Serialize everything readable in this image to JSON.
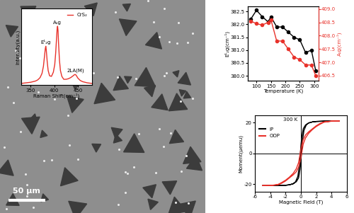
{
  "image": {
    "scale_bar": "50 μm"
  },
  "chart_data": [
    {
      "type": "line",
      "xlabel": "Raman Shift(cm⁻¹)",
      "ylabel": "Intensity(a.u.)",
      "x": [
        330,
        340,
        350,
        360,
        365,
        370,
        374,
        377,
        379,
        381,
        382,
        383,
        385,
        387,
        390,
        394,
        398,
        401,
        403,
        405,
        406,
        407,
        408,
        409,
        411,
        413,
        416,
        420,
        425,
        430,
        435,
        440,
        443,
        445,
        447,
        450,
        455,
        460,
        470,
        480
      ],
      "series": [
        {
          "name": "CrS₂",
          "color": "#e8322b",
          "values": [
            0.03,
            0.04,
            0.05,
            0.07,
            0.09,
            0.13,
            0.2,
            0.32,
            0.47,
            0.62,
            0.66,
            0.6,
            0.4,
            0.25,
            0.16,
            0.15,
            0.22,
            0.35,
            0.55,
            0.82,
            0.95,
            1.0,
            0.92,
            0.72,
            0.42,
            0.25,
            0.15,
            0.1,
            0.1,
            0.11,
            0.13,
            0.16,
            0.18,
            0.18,
            0.16,
            0.12,
            0.08,
            0.06,
            0.04,
            0.03
          ]
        }
      ],
      "annotations": [
        {
          "text": "E¹₂g",
          "x": 382
        },
        {
          "text": "A₁g",
          "x": 407
        },
        {
          "text": "2LA(M)",
          "x": 445
        }
      ],
      "xlim": [
        330,
        480
      ],
      "xticks": [
        350,
        400,
        450
      ],
      "ylim": [
        0,
        1.3
      ],
      "yticks": [],
      "tick_labels": "x",
      "legend": "upper right"
    },
    {
      "type": "line",
      "xlabel": "Temperature (K)",
      "ylabel": "E¹₂g(cm⁻¹)",
      "y2label": "A₁g(cm⁻¹)",
      "x": [
        80,
        100,
        120,
        140,
        150,
        170,
        190,
        210,
        230,
        250,
        270,
        290,
        305
      ],
      "series": [
        {
          "color": "#000000",
          "marker": "o",
          "values": [
            382.2,
            382.55,
            382.3,
            382.1,
            382.3,
            381.9,
            381.9,
            381.7,
            381.5,
            381.4,
            380.9,
            381.0,
            380.2
          ]
        },
        {
          "color": "#e8322b",
          "marker": "o",
          "axis": "y2",
          "values": [
            408.55,
            408.45,
            408.4,
            408.5,
            408.6,
            407.8,
            407.8,
            407.5,
            407.2,
            407.1,
            406.9,
            406.9,
            406.5
          ]
        }
      ],
      "xlim": [
        70,
        315
      ],
      "xticks": [
        100,
        150,
        200,
        250,
        300
      ],
      "ylim": [
        379.8,
        382.7
      ],
      "yticks": [
        {
          "value": 380,
          "label": "380.0"
        },
        380.5,
        {
          "value": 381,
          "label": "381.0"
        },
        381.5,
        {
          "value": 382,
          "label": "382.0"
        },
        382.5
      ],
      "y2lim": [
        406.3,
        409.1
      ],
      "y2ticks": [
        406.5,
        {
          "value": 407,
          "label": "407.0"
        },
        407.5,
        {
          "value": 408,
          "label": "408.0"
        },
        408.5,
        {
          "value": 409,
          "label": "409.0"
        }
      ]
    },
    {
      "type": "line",
      "xlabel": "Magnetic Field (T)",
      "ylabel": "Moment(μemu)",
      "annotation": "300 K",
      "series": [
        {
          "name": "IP",
          "color": "#000000",
          "x": [
            5,
            4,
            3,
            2,
            1.5,
            1,
            0.6,
            0.3,
            0.1,
            0,
            -0.1,
            -0.2,
            -0.4,
            -0.7,
            -1,
            -1.5,
            -2,
            -3,
            -4,
            -5,
            -5,
            -4,
            -3,
            -2,
            -1.5,
            -1,
            -0.6,
            -0.3,
            -0.1,
            0,
            0.1,
            0.2,
            0.4,
            0.7,
            1,
            1.5,
            2,
            3,
            4,
            5
          ],
          "values": [
            21,
            21,
            21,
            20.8,
            20.5,
            19.8,
            18.5,
            16,
            10,
            5,
            -2,
            -8,
            -15,
            -18.5,
            -19.8,
            -20.5,
            -20.8,
            -21,
            -21,
            -21,
            -21,
            -21,
            -21,
            -20.8,
            -20.5,
            -19.8,
            -18.5,
            -16,
            -10,
            -5,
            2,
            8,
            15,
            18.5,
            19.8,
            20.5,
            20.8,
            21,
            21,
            21
          ]
        },
        {
          "name": "OOP",
          "color": "#e8322b",
          "x": [
            5,
            4,
            3,
            2.5,
            2,
            1.5,
            1,
            0.6,
            0.3,
            0.1,
            0,
            -0.1,
            -0.3,
            -0.6,
            -1,
            -1.5,
            -2,
            -2.5,
            -3,
            -4,
            -5,
            -5,
            -4,
            -3,
            -2.5,
            -2,
            -1.5,
            -1,
            -0.6,
            -0.3,
            -0.1,
            0,
            0.1,
            0.3,
            0.6,
            1,
            1.5,
            2,
            2.5,
            3,
            4,
            5
          ],
          "values": [
            21,
            21,
            20.5,
            19.5,
            18,
            16,
            14,
            12,
            9,
            5,
            3,
            0,
            -6,
            -10,
            -13,
            -15.5,
            -17.5,
            -19,
            -20.3,
            -21,
            -21,
            -21,
            -21,
            -20.5,
            -19.5,
            -18,
            -16,
            -14,
            -12,
            -9,
            -5,
            -3,
            0,
            6,
            10,
            13,
            15.5,
            17.5,
            19,
            20.3,
            21,
            21
          ]
        }
      ],
      "xlim": [
        -6,
        6
      ],
      "xticks": [
        -6,
        -4,
        -2,
        0,
        2,
        4,
        6
      ],
      "ylim": [
        -25,
        25
      ],
      "yticks": [
        -20,
        0,
        20
      ],
      "legend": "upper left"
    }
  ]
}
